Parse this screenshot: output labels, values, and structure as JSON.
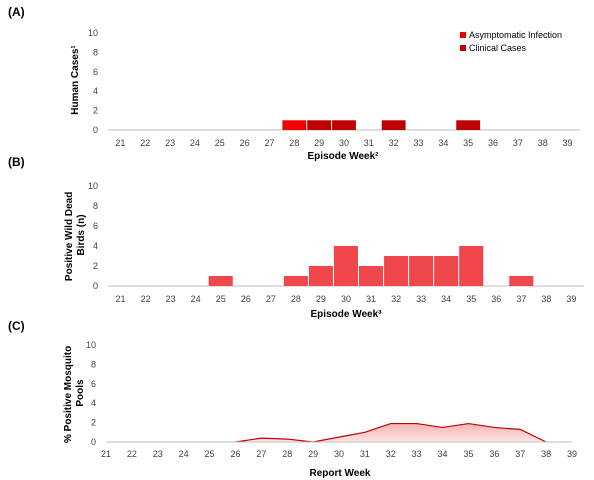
{
  "colors": {
    "asymptomatic": "#ee0000",
    "clinical": "#c00000",
    "birds": "#f0474d",
    "mosquito_line": "#c00000",
    "mosquito_fill": "#f4b4b4"
  },
  "chart_data": [
    {
      "panel": "(A)",
      "type": "bar",
      "stacked": true,
      "categories": [
        "21",
        "22",
        "23",
        "24",
        "25",
        "26",
        "27",
        "28",
        "29",
        "30",
        "31",
        "32",
        "33",
        "34",
        "35",
        "36",
        "37",
        "38",
        "39"
      ],
      "series": [
        {
          "name": "Asymptomatic Infection",
          "values": [
            0,
            0,
            0,
            0,
            0,
            0,
            0,
            1,
            0,
            0,
            0,
            0,
            0,
            0,
            0,
            0,
            0,
            0,
            0
          ]
        },
        {
          "name": "Clinical Cases",
          "values": [
            0,
            0,
            0,
            0,
            0,
            0,
            0,
            0,
            1,
            1,
            0,
            1,
            0,
            0,
            1,
            0,
            0,
            0,
            0
          ]
        }
      ],
      "ylabel": "Human Cases¹",
      "xlabel": "Episode Week²",
      "ylim": [
        0,
        10
      ],
      "yticks": [
        "0",
        "2",
        "4",
        "6",
        "8",
        "10"
      ],
      "legend": "top-right",
      "grid": false
    },
    {
      "panel": "(B)",
      "type": "bar",
      "categories": [
        "21",
        "22",
        "23",
        "24",
        "25",
        "26",
        "27",
        "28",
        "29",
        "30",
        "31",
        "32",
        "33",
        "34",
        "35",
        "36",
        "37",
        "38",
        "39"
      ],
      "series": [
        {
          "name": "",
          "values": [
            0,
            0,
            0,
            0,
            1,
            0,
            0,
            1,
            2,
            4,
            2,
            3,
            3,
            3,
            4,
            0,
            1,
            0,
            0
          ]
        }
      ],
      "ylabel": "Positive Wild Dead Birds (n)",
      "xlabel": "Episode Week³",
      "ylim": [
        0,
        10
      ],
      "yticks": [
        "0",
        "2",
        "4",
        "6",
        "8",
        "10"
      ],
      "grid": false
    },
    {
      "panel": "(C)",
      "type": "area",
      "x": [
        "21",
        "22",
        "23",
        "24",
        "25",
        "26",
        "27",
        "28",
        "29",
        "30",
        "31",
        "32",
        "33",
        "34",
        "35",
        "36",
        "37",
        "38",
        "39"
      ],
      "series": [
        {
          "name": "",
          "values": [
            null,
            null,
            null,
            null,
            null,
            0,
            0.4,
            0.3,
            0,
            0.5,
            1.0,
            1.9,
            1.9,
            1.5,
            1.9,
            1.5,
            1.3,
            0,
            null
          ]
        }
      ],
      "ylabel": "% Positive Mosquito Pools",
      "xlabel": "Report Week",
      "ylim": [
        0,
        10
      ],
      "yticks": [
        "0",
        "2",
        "4",
        "6",
        "8",
        "10"
      ],
      "grid": false
    }
  ]
}
